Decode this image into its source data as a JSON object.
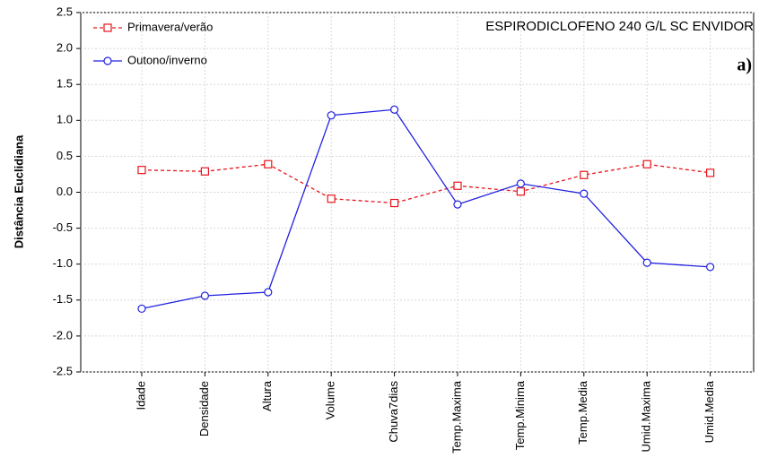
{
  "chart_data": {
    "type": "line",
    "annotation": "ESPIRODICLOFENO 240 G/L SC ENVIDOR",
    "panel_label": "a)",
    "y_label": "Distância Euclidiana",
    "categories": [
      "Idade",
      "Densidade",
      "Altura",
      "Volume",
      "Chuva7dias",
      "Temp.Maxima",
      "Temp.Minima",
      "Temp.Media",
      "Umid.Maxima",
      "Umid.Media"
    ],
    "series": [
      {
        "name": "Primavera/verão",
        "color": "#e8141c",
        "dashed": true,
        "marker": "square",
        "values": [
          0.31,
          0.29,
          0.39,
          -0.09,
          -0.15,
          0.09,
          0.01,
          0.24,
          0.39,
          0.27
        ]
      },
      {
        "name": "Outono/inverno",
        "color": "#2020e0",
        "dashed": false,
        "marker": "circle",
        "values": [
          -1.62,
          -1.44,
          -1.39,
          1.07,
          1.15,
          -0.17,
          0.12,
          -0.02,
          -0.98,
          -1.04
        ]
      }
    ],
    "ylim": [
      -2.5,
      2.5
    ],
    "yticks": [
      -2.5,
      {
        "value": -2,
        "label": "-2.0"
      },
      -1.5,
      {
        "value": -1,
        "label": "-1.0"
      },
      -0.5,
      {
        "value": 0,
        "label": "0.0"
      },
      0.5,
      {
        "value": 1,
        "label": "1.0"
      },
      1.5,
      {
        "value": 2,
        "label": "2.0"
      },
      2.5
    ],
    "grid": true,
    "legend": "top-left"
  }
}
